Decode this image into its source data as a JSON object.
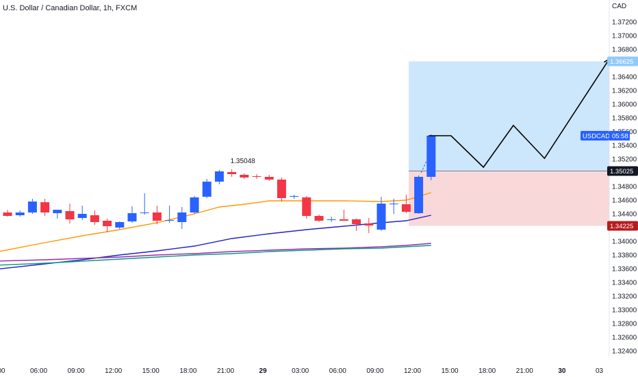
{
  "header": {
    "title": "U.S. Dollar / Canadian Dollar, 1h, FXCM"
  },
  "price_axis": {
    "currency": "CAD"
  },
  "colors": {
    "up": "#2962ff",
    "down": "#f23645",
    "ema_fast": "#ff9800",
    "ema_slow": "#1e22c8",
    "ema_long_a": "#9c27b0",
    "ema_long_b": "#089981",
    "target_zone": "#bbdefb",
    "stop_zone": "#f8d4d6",
    "target_tag": "#90caf9",
    "stop_tag": "#b71c1c",
    "last_tag": "#2962ff",
    "entry_tag": "#131722"
  },
  "chart_data": {
    "type": "candlestick",
    "title": "U.S. Dollar / Canadian Dollar, 1h, FXCM",
    "ylim": [
      1.3232,
      1.3752
    ],
    "y_ticks": [
      "1.32400",
      "1.32600",
      "1.32800",
      "1.33000",
      "1.33200",
      "1.33400",
      "1.33600",
      "1.33800",
      "1.34000",
      "1.34200",
      "1.34400",
      "1.34600",
      "1.34800",
      "1.35000",
      "1.35200",
      "1.35400",
      "1.35600",
      "1.35800",
      "1.36000",
      "1.36200",
      "1.36400",
      "1.36600",
      "1.36800",
      "1.37000",
      "1.37200"
    ],
    "x_ticks": [
      {
        "label": "00",
        "bar": -0.5
      },
      {
        "label": "06:00",
        "bar": 2.5
      },
      {
        "label": "09:00",
        "bar": 5.5
      },
      {
        "label": "12:00",
        "bar": 8.5
      },
      {
        "label": "15:00",
        "bar": 11.5
      },
      {
        "label": "18:00",
        "bar": 14.5
      },
      {
        "label": "21:00",
        "bar": 17.5
      },
      {
        "label": "29",
        "bar": 20.5
      },
      {
        "label": "03:00",
        "bar": 23.5
      },
      {
        "label": "06:00",
        "bar": 26.5
      },
      {
        "label": "09:00",
        "bar": 29.5
      },
      {
        "label": "12:00",
        "bar": 32.5
      },
      {
        "label": "15:00",
        "bar": 35.5
      },
      {
        "label": "18:00",
        "bar": 38.5
      },
      {
        "label": "21:00",
        "bar": 41.5
      },
      {
        "label": "30",
        "bar": 44.5
      },
      {
        "label": "03",
        "bar": 47.5
      }
    ],
    "candles": [
      [
        1.3442,
        1.3446,
        1.3436,
        1.3437
      ],
      [
        1.3438,
        1.3445,
        1.3436,
        1.3442
      ],
      [
        1.3442,
        1.3462,
        1.344,
        1.3458
      ],
      [
        1.3457,
        1.3462,
        1.3437,
        1.3442
      ],
      [
        1.3441,
        1.3445,
        1.3433,
        1.3446
      ],
      [
        1.3444,
        1.3455,
        1.3426,
        1.3432
      ],
      [
        1.3434,
        1.3452,
        1.3431,
        1.344
      ],
      [
        1.3438,
        1.3445,
        1.3424,
        1.3428
      ],
      [
        1.343,
        1.3433,
        1.3413,
        1.3422
      ],
      [
        1.342,
        1.3429,
        1.3418,
        1.3428
      ],
      [
        1.3429,
        1.3451,
        1.3427,
        1.3441
      ],
      [
        1.3441,
        1.347,
        1.3439,
        1.3442
      ],
      [
        1.3442,
        1.3452,
        1.3425,
        1.343
      ],
      [
        1.343,
        1.3452,
        1.3427,
        1.3431
      ],
      [
        1.3428,
        1.345,
        1.3418,
        1.3442
      ],
      [
        1.3442,
        1.3466,
        1.344,
        1.3464
      ],
      [
        1.3465,
        1.3491,
        1.3463,
        1.3487
      ],
      [
        1.3487,
        1.3504,
        1.3483,
        1.3502
      ],
      [
        1.3501,
        1.3505,
        1.3494,
        1.3498
      ],
      [
        1.3497,
        1.3499,
        1.3491,
        1.3493
      ],
      [
        1.3495,
        1.3498,
        1.3491,
        1.3494
      ],
      [
        1.3494,
        1.3497,
        1.3488,
        1.349
      ],
      [
        1.349,
        1.3493,
        1.3458,
        1.3463
      ],
      [
        1.3465,
        1.3468,
        1.3462,
        1.3466
      ],
      [
        1.3464,
        1.3466,
        1.3433,
        1.3437
      ],
      [
        1.3437,
        1.3439,
        1.3428,
        1.343
      ],
      [
        1.3431,
        1.3436,
        1.3428,
        1.3432
      ],
      [
        1.3432,
        1.3446,
        1.343,
        1.343
      ],
      [
        1.3432,
        1.3433,
        1.3415,
        1.3425
      ],
      [
        1.3426,
        1.3434,
        1.3412,
        1.3423
      ],
      [
        1.3417,
        1.3465,
        1.3415,
        1.3455
      ],
      [
        1.3455,
        1.3462,
        1.344,
        1.3455
      ],
      [
        1.3454,
        1.3468,
        1.3441,
        1.3443
      ],
      [
        1.3441,
        1.3496,
        1.344,
        1.3494
      ],
      [
        1.3494,
        1.3556,
        1.3489,
        1.3554
      ]
    ],
    "ema_fast": [
      [
        -1,
        1.3384
      ],
      [
        3,
        1.3398
      ],
      [
        6,
        1.3408
      ],
      [
        9,
        1.3417
      ],
      [
        12,
        1.3427
      ],
      [
        15,
        1.344
      ],
      [
        17,
        1.345
      ],
      [
        19,
        1.3454
      ],
      [
        21,
        1.3459
      ],
      [
        24,
        1.3459
      ],
      [
        27,
        1.3459
      ],
      [
        30,
        1.3458
      ],
      [
        32,
        1.346
      ],
      [
        34,
        1.3471
      ]
    ],
    "ema_slow": [
      [
        -1,
        1.3359
      ],
      [
        3,
        1.3367
      ],
      [
        6,
        1.3373
      ],
      [
        9,
        1.338
      ],
      [
        12,
        1.3386
      ],
      [
        15,
        1.3393
      ],
      [
        18,
        1.3404
      ],
      [
        21,
        1.3411
      ],
      [
        24,
        1.3417
      ],
      [
        27,
        1.3422
      ],
      [
        30,
        1.3427
      ],
      [
        32,
        1.343
      ],
      [
        34,
        1.3438
      ]
    ],
    "ema_long_a": [
      [
        -1,
        1.3371
      ],
      [
        3,
        1.3373
      ],
      [
        6,
        1.3375
      ],
      [
        9,
        1.3377
      ],
      [
        12,
        1.338
      ],
      [
        15,
        1.3382
      ],
      [
        18,
        1.3385
      ],
      [
        21,
        1.3387
      ],
      [
        24,
        1.3389
      ],
      [
        27,
        1.339
      ],
      [
        30,
        1.3392
      ],
      [
        32,
        1.3394
      ],
      [
        34,
        1.3397
      ]
    ],
    "ema_long_b": [
      [
        -1,
        1.3365
      ],
      [
        3,
        1.3368
      ],
      [
        6,
        1.3371
      ],
      [
        9,
        1.3374
      ],
      [
        12,
        1.3377
      ],
      [
        15,
        1.338
      ],
      [
        18,
        1.3382
      ],
      [
        21,
        1.3385
      ],
      [
        24,
        1.3387
      ],
      [
        27,
        1.3389
      ],
      [
        30,
        1.339
      ],
      [
        32,
        1.3392
      ],
      [
        34,
        1.3394
      ]
    ],
    "position": {
      "start_bar": 32.2,
      "target": 1.36625,
      "entry": 1.35025,
      "stop": 1.34225
    },
    "projection": [
      [
        33.8,
        1.3554
      ],
      [
        35.6,
        1.3554
      ],
      [
        38.2,
        1.3508
      ],
      [
        40.6,
        1.3569
      ],
      [
        43.1,
        1.3521
      ],
      [
        48.3,
        1.3666
      ]
    ],
    "high_annotation": {
      "bar": 18.0,
      "value": 1.35048,
      "label": "1.35048"
    },
    "price_tags": {
      "target": "1.36625",
      "entry": "1.35025",
      "stop": "1.34225",
      "last": {
        "symbol": "USDCAD",
        "countdown": "05:58"
      }
    }
  }
}
